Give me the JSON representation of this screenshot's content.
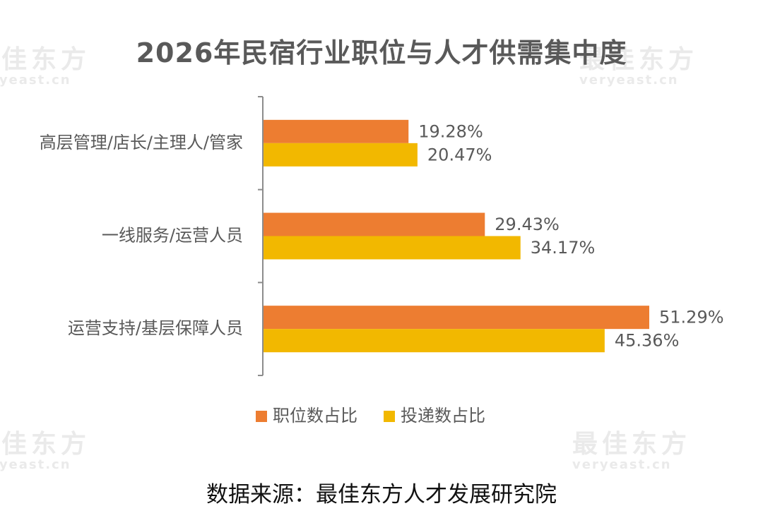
{
  "title": "2026年民宿行业职位与人才供需集中度",
  "source": "数据来源：最佳东方人才发展研究院",
  "watermark": {
    "cn": "最佳东方",
    "en": "veryeast.cn"
  },
  "colors": {
    "series1": "#ED7D31",
    "series2": "#F2B800",
    "text": "#595959",
    "axis": "#8c8c8c"
  },
  "chart_data": {
    "type": "bar",
    "orientation": "horizontal",
    "categories": [
      "高层管理/店长/主理人/管家",
      "一线服务/运营人员",
      "运营支持/基层保障人员"
    ],
    "series": [
      {
        "name": "职位数占比",
        "values": [
          19.28,
          29.43,
          51.29
        ],
        "labels": [
          "19.28%",
          "29.43%",
          "51.29%"
        ]
      },
      {
        "name": "投递数占比",
        "values": [
          20.47,
          34.17,
          45.36
        ],
        "labels": [
          "20.47%",
          "34.17%",
          "45.36%"
        ]
      }
    ],
    "legend_position": "bottom",
    "grid": false
  }
}
